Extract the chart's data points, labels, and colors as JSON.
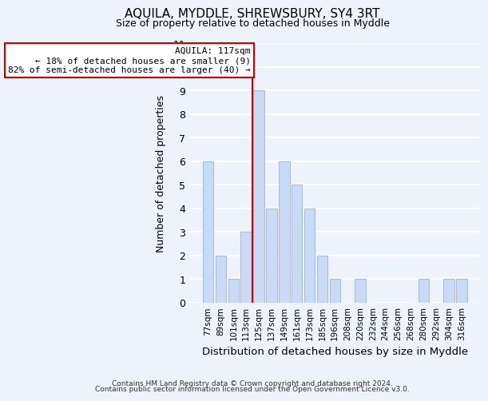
{
  "title": "AQUILA, MYDDLE, SHREWSBURY, SY4 3RT",
  "subtitle": "Size of property relative to detached houses in Myddle",
  "xlabel": "Distribution of detached houses by size in Myddle",
  "ylabel": "Number of detached properties",
  "bar_color": "#c8daf5",
  "bar_edge_color": "#a0bcd8",
  "background_color": "#eef2fa",
  "grid_color": "white",
  "bins": [
    "77sqm",
    "89sqm",
    "101sqm",
    "113sqm",
    "125sqm",
    "137sqm",
    "149sqm",
    "161sqm",
    "173sqm",
    "185sqm",
    "196sqm",
    "208sqm",
    "220sqm",
    "232sqm",
    "244sqm",
    "256sqm",
    "268sqm",
    "280sqm",
    "292sqm",
    "304sqm",
    "316sqm"
  ],
  "values": [
    6,
    2,
    1,
    3,
    9,
    4,
    6,
    5,
    4,
    2,
    1,
    0,
    1,
    0,
    0,
    0,
    0,
    1,
    0,
    1,
    1
  ],
  "ylim": [
    0,
    11
  ],
  "yticks": [
    0,
    1,
    2,
    3,
    4,
    5,
    6,
    7,
    8,
    9,
    10,
    11
  ],
  "aquila_line_index": 4,
  "annotation_title": "AQUILA: 117sqm",
  "annotation_line1": "← 18% of detached houses are smaller (9)",
  "annotation_line2": "82% of semi-detached houses are larger (40) →",
  "annotation_box_color": "white",
  "annotation_box_edge": "#cc0000",
  "aquila_line_color": "#cc0000",
  "footer1": "Contains HM Land Registry data © Crown copyright and database right 2024.",
  "footer2": "Contains public sector information licensed under the Open Government Licence v3.0."
}
